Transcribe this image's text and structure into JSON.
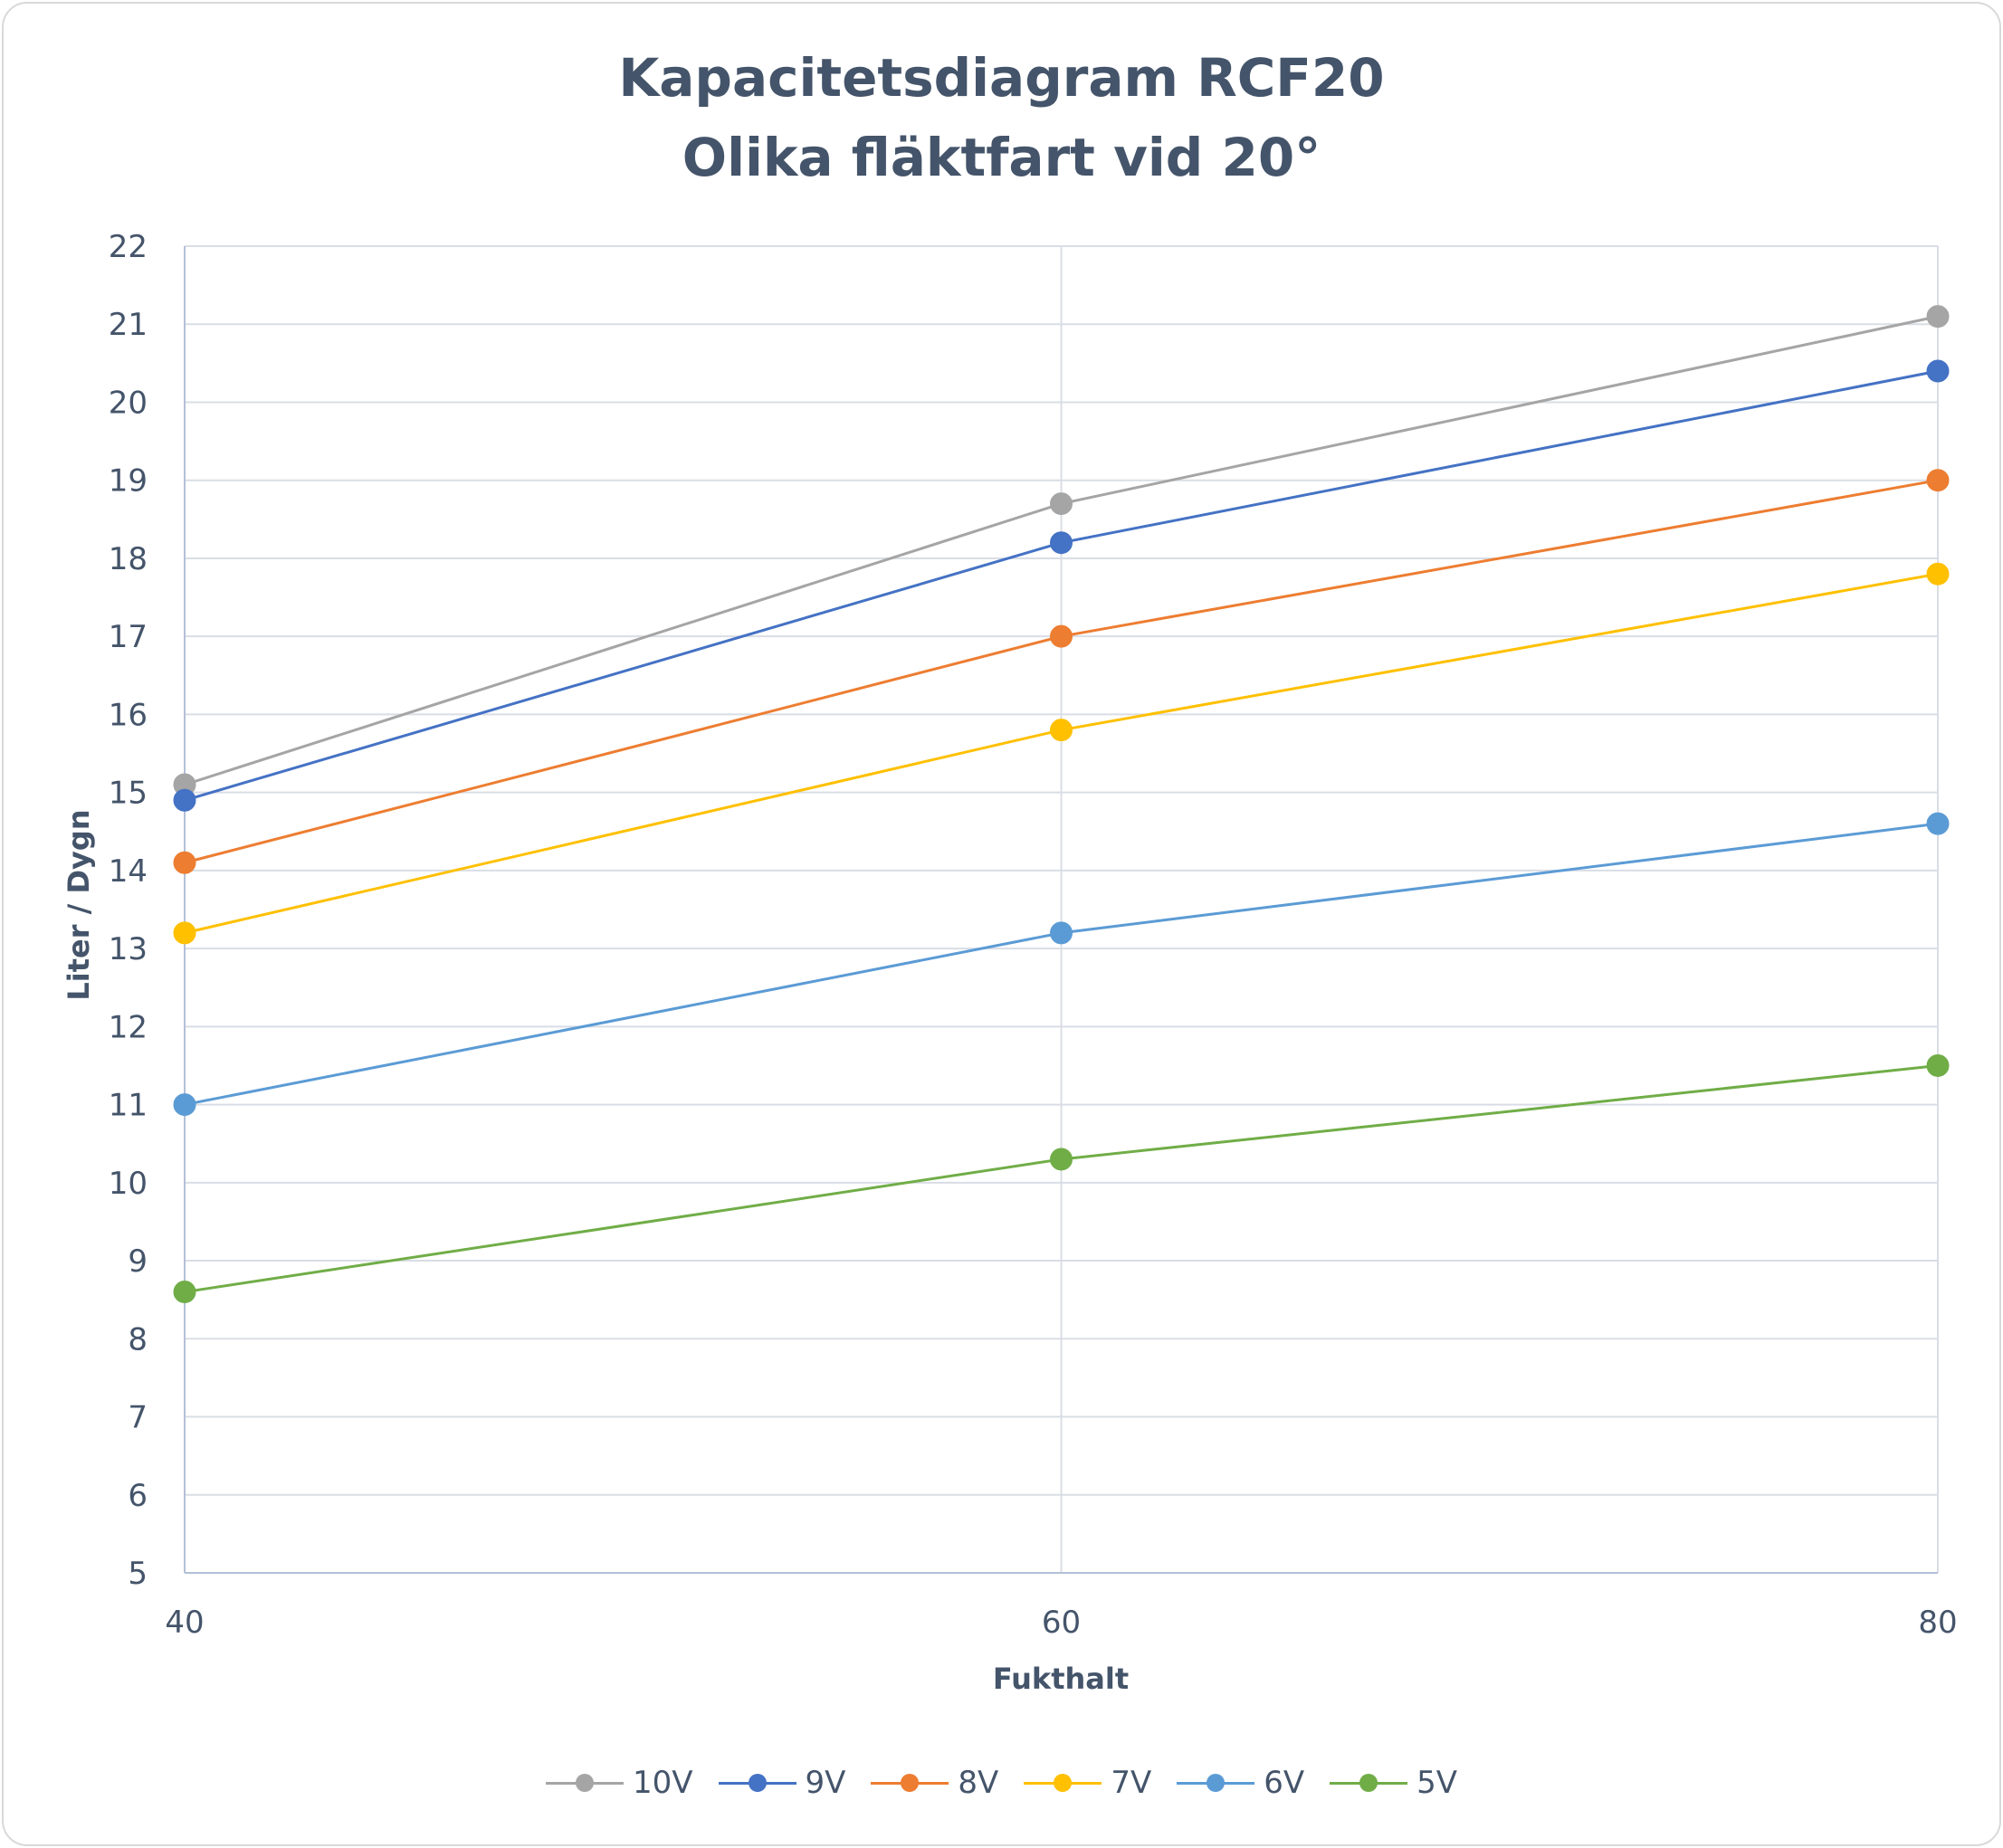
{
  "chart_data": {
    "type": "line",
    "title": "Kapacitetsdiagram RCF20",
    "subtitle": "Olika fläktfart vid 20°",
    "xlabel": "Fukthalt",
    "ylabel": "Liter / Dygn",
    "x": [
      40,
      60,
      80
    ],
    "xlim": [
      40,
      80
    ],
    "ylim": [
      5,
      22
    ],
    "yticks": [
      5,
      6,
      7,
      8,
      9,
      10,
      11,
      12,
      13,
      14,
      15,
      16,
      17,
      18,
      19,
      20,
      21,
      22
    ],
    "grid": true,
    "legend_position": "bottom",
    "series": [
      {
        "name": "10V",
        "color": "#a5a5a5",
        "values": [
          15.1,
          18.7,
          21.1
        ]
      },
      {
        "name": "9V",
        "color": "#4472c4",
        "values": [
          14.9,
          18.2,
          20.4
        ]
      },
      {
        "name": "8V",
        "color": "#ed7d31",
        "values": [
          14.1,
          17.0,
          19.0
        ]
      },
      {
        "name": "7V",
        "color": "#ffc000",
        "values": [
          13.2,
          15.8,
          17.8
        ]
      },
      {
        "name": "6V",
        "color": "#5b9bd5",
        "values": [
          11.0,
          13.2,
          14.6
        ]
      },
      {
        "name": "5V",
        "color": "#70ad47",
        "values": [
          8.6,
          10.3,
          11.5
        ]
      }
    ]
  }
}
